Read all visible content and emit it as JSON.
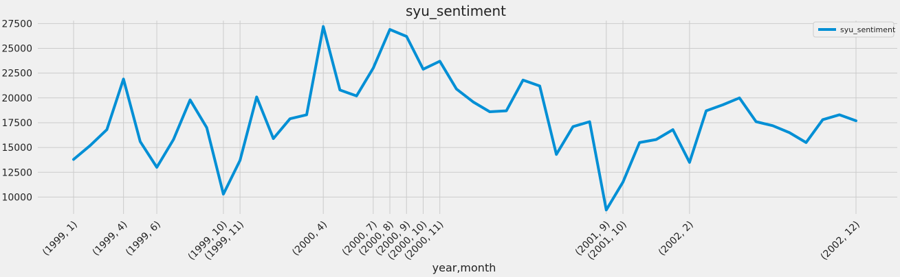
{
  "chart_data": {
    "type": "line",
    "title": "syu_sentiment",
    "xlabel": "year,month",
    "ylabel": "",
    "ylim": [
      8300,
      27800
    ],
    "yticks": [
      10000,
      12500,
      15000,
      17500,
      20000,
      22500,
      25000,
      27500
    ],
    "ytick_labels": [
      "10000",
      "12500",
      "15000",
      "17500",
      "20000",
      "22500",
      "25000",
      "27500"
    ],
    "x": [
      "(1999, 1)",
      "(1999, 2)",
      "(1999, 3)",
      "(1999, 4)",
      "(1999, 5)",
      "(1999, 6)",
      "(1999, 7)",
      "(1999, 8)",
      "(1999, 9)",
      "(1999, 10)",
      "(1999, 11)",
      "(1999, 12)",
      "(2000, 1)",
      "(2000, 2)",
      "(2000, 3)",
      "(2000, 4)",
      "(2000, 5)",
      "(2000, 6)",
      "(2000, 7)",
      "(2000, 8)",
      "(2000, 9)",
      "(2000, 10)",
      "(2000, 11)",
      "(2000, 12)",
      "(2001, 1)",
      "(2001, 2)",
      "(2001, 3)",
      "(2001, 4)",
      "(2001, 5)",
      "(2001, 6)",
      "(2001, 7)",
      "(2001, 8)",
      "(2001, 9)",
      "(2001, 10)",
      "(2001, 11)",
      "(2001, 12)",
      "(2002, 1)",
      "(2002, 2)",
      "(2002, 3)",
      "(2002, 4)",
      "(2002, 5)",
      "(2002, 6)",
      "(2002, 7)",
      "(2002, 8)",
      "(2002, 9)",
      "(2002, 10)",
      "(2002, 11)",
      "(2002, 12)"
    ],
    "xtick_indices": [
      0,
      3,
      5,
      9,
      10,
      15,
      18,
      19,
      20,
      21,
      22,
      32,
      33,
      37,
      47
    ],
    "xtick_labels": [
      "(1999, 1)",
      "(1999, 4)",
      "(1999, 6)",
      "(1999, 10)",
      "(1999, 11)",
      "(2000, 4)",
      "(2000, 7)",
      "(2000, 8)",
      "(2000, 9)",
      "(2000, 10)",
      "(2000, 11)",
      "(2001, 9)",
      "(2001, 10)",
      "(2002, 2)",
      "(2002, 12)"
    ],
    "series": [
      {
        "name": "syu_sentiment",
        "color": "#008fd5",
        "values": [
          13800,
          15200,
          16800,
          21900,
          15600,
          13000,
          15800,
          19800,
          17000,
          10300,
          13700,
          20100,
          15900,
          17900,
          18300,
          27200,
          20800,
          20200,
          23000,
          26900,
          26200,
          22900,
          23700,
          20900,
          19600,
          18600,
          18700,
          21800,
          21200,
          14300,
          17100,
          17600,
          8700,
          11500,
          15500,
          15800,
          16800,
          13500,
          18700,
          19300,
          20000,
          17600,
          17200,
          16500,
          15500,
          17800,
          18300,
          17700
        ]
      }
    ],
    "grid": true,
    "legend": "top-right"
  }
}
